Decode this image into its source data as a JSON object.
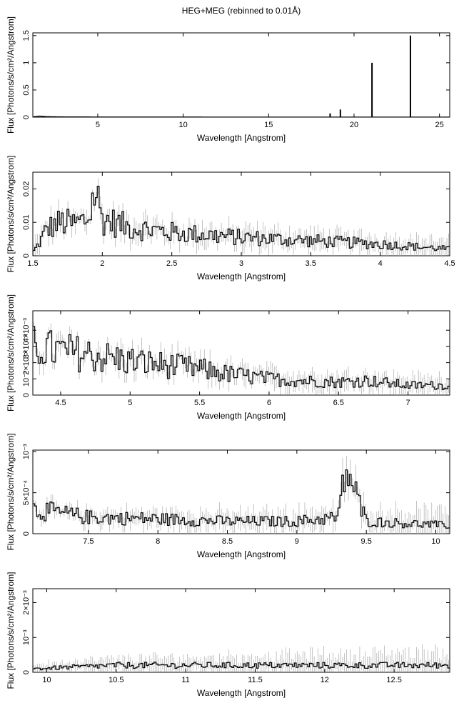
{
  "title": "HEG+MEG (rebinned to 0.01Å)",
  "chart_data": [
    {
      "type": "line",
      "title": "HEG+MEG (rebinned to 0.01Å)",
      "xlabel": "Wavelength [Angstrom]",
      "ylabel": "Flux [Photons/s/cm²/Angstrom]",
      "xlim": [
        1.2,
        25.6
      ],
      "ylim": [
        0,
        1.55
      ],
      "xticks": [
        5,
        10,
        15,
        20,
        25
      ],
      "xtick_labels": [
        "5",
        "10",
        "15",
        "20",
        "25"
      ],
      "yticks": [
        0,
        0.5,
        1,
        1.5
      ],
      "ytick_labels": [
        "0",
        "0.5",
        "1",
        "1.5"
      ],
      "series": [
        {
          "x": [
            1.2,
            1.6,
            2.0,
            3.0,
            5.0,
            10.0,
            15.0,
            18.0,
            20.0,
            25.6
          ],
          "y": [
            0.005,
            0.02,
            0.01,
            0.006,
            0.004,
            0.003,
            0.002,
            0.002,
            0.002,
            0.002
          ]
        }
      ],
      "peaks": [
        {
          "x": 18.6,
          "y": 0.07
        },
        {
          "x": 19.2,
          "y": 0.14
        },
        {
          "x": 21.05,
          "y": 1.0
        },
        {
          "x": 23.3,
          "y": 1.5
        }
      ]
    },
    {
      "type": "line",
      "xlabel": "Wavelength [Angstrom]",
      "ylabel": "Flux [Photons/s/cm²/Angstrom]",
      "xlim": [
        1.5,
        4.5
      ],
      "ylim": [
        0,
        0.025
      ],
      "xticks": [
        1.5,
        2,
        2.5,
        3,
        3.5,
        4,
        4.5
      ],
      "xtick_labels": [
        "1.5",
        "2",
        "2.5",
        "3",
        "3.5",
        "4",
        "4.5"
      ],
      "yticks": [
        0,
        0.01,
        0.02
      ],
      "ytick_labels": [
        "0",
        "0.01",
        "0.02"
      ],
      "series": [
        {
          "x": [
            1.5,
            1.55,
            1.6,
            1.65,
            1.7,
            1.8,
            1.9,
            1.95,
            2.0,
            2.2,
            2.5,
            3.0,
            3.5,
            4.0,
            4.5
          ],
          "y": [
            0.001,
            0.004,
            0.008,
            0.009,
            0.01,
            0.0095,
            0.011,
            0.02,
            0.011,
            0.0085,
            0.007,
            0.0055,
            0.0045,
            0.0035,
            0.002
          ]
        }
      ]
    },
    {
      "type": "line",
      "xlabel": "Wavelength [Angstrom]",
      "ylabel": "Flux [Photons/s/cm²/Angstrom]",
      "xlim": [
        4.3,
        7.3
      ],
      "ylim": [
        0,
        0.0052
      ],
      "xticks": [
        4.5,
        5,
        5.5,
        6,
        6.5,
        7
      ],
      "xtick_labels": [
        "4.5",
        "5",
        "5.5",
        "6",
        "6.5",
        "7"
      ],
      "yticks": [
        0,
        0.001,
        0.002,
        0.003,
        0.004
      ],
      "ytick_labels": [
        "0",
        "10⁻³",
        "2×10⁻³",
        "3×10⁻³",
        "4×10⁻³"
      ],
      "series": [
        {
          "x": [
            4.3,
            4.5,
            4.7,
            5.0,
            5.2,
            5.5,
            5.7,
            6.0,
            6.2,
            6.5,
            6.7,
            7.0,
            7.3
          ],
          "y": [
            0.003,
            0.0027,
            0.0025,
            0.0021,
            0.0019,
            0.0016,
            0.0013,
            0.001,
            0.0009,
            0.0008,
            0.0009,
            0.0006,
            0.0006
          ]
        }
      ]
    },
    {
      "type": "line",
      "xlabel": "Wavelength [Angstrom]",
      "ylabel": "Flux [Photons/s/cm²/Angstrom]",
      "xlim": [
        7.1,
        10.1
      ],
      "ylim": [
        0,
        0.00102
      ],
      "xticks": [
        7.5,
        8,
        8.5,
        9,
        9.5,
        10
      ],
      "xtick_labels": [
        "7.5",
        "8",
        "8.5",
        "9",
        "9.5",
        "10"
      ],
      "yticks": [
        0,
        0.0005,
        0.001
      ],
      "ytick_labels": [
        "0",
        "5×10⁻⁴",
        "10⁻³"
      ],
      "series": [
        {
          "x": [
            7.1,
            7.5,
            8.0,
            8.5,
            9.0,
            9.3,
            9.35,
            9.5,
            10.1
          ],
          "y": [
            0.0003,
            0.0002,
            0.00018,
            0.00015,
            0.00015,
            0.0002,
            0.0008,
            0.00015,
            0.0001
          ]
        }
      ]
    },
    {
      "type": "line",
      "xlabel": "Wavelength [Angstrom]",
      "ylabel": "Flux [Photons/s/cm²/Angstrom]",
      "xlim": [
        9.9,
        12.9
      ],
      "ylim": [
        0,
        0.0024
      ],
      "xticks": [
        10,
        10.5,
        11,
        11.5,
        12,
        12.5
      ],
      "xtick_labels": [
        "10",
        "10.5",
        "11",
        "11.5",
        "12",
        "12.5"
      ],
      "yticks": [
        0,
        0.001,
        0.002
      ],
      "ytick_labels": [
        "0",
        "10⁻³",
        "2×10⁻³"
      ],
      "series": [
        {
          "x": [
            9.9,
            10.5,
            11.0,
            11.5,
            12.0,
            12.5,
            12.9
          ],
          "y": [
            0.0001,
            0.0002,
            0.0002,
            0.0002,
            0.0002,
            0.0002,
            0.0002
          ]
        }
      ]
    }
  ]
}
